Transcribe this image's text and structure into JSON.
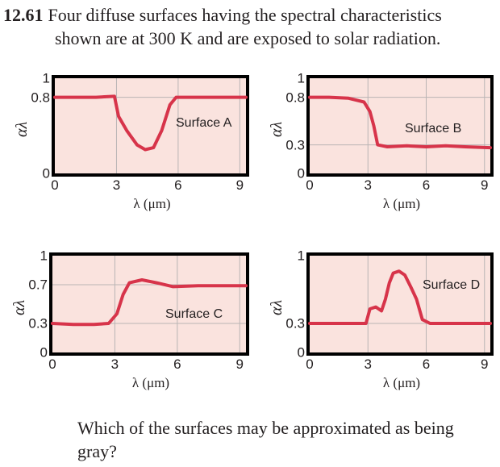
{
  "problem": {
    "number": "12.61",
    "text_line1": "Four diffuse surfaces having the spectral characteristics",
    "text_line2": "shown are at 300 K and are exposed to solar radiation."
  },
  "question": "Which of the surfaces may be approximated as being gray?",
  "colors": {
    "curve": "#d7344a",
    "plot_background": "#fae3de",
    "grid": "#b9b4b4",
    "frame": "#000000"
  },
  "chart_data": [
    {
      "type": "line",
      "label": "Surface A",
      "xlabel": "λ (μm)",
      "ylabel": "αλ",
      "xlim": [
        0,
        9.3
      ],
      "ylim": [
        0,
        1
      ],
      "xticks": [
        "0",
        "3",
        "6",
        "9"
      ],
      "yticks": [
        "0",
        "0.8",
        "1"
      ],
      "grid": true,
      "x": [
        0,
        1,
        2,
        2.9,
        3.1,
        3.5,
        4,
        4.4,
        4.8,
        5.2,
        5.6,
        5.9,
        7,
        8,
        9.3
      ],
      "y": [
        0.8,
        0.8,
        0.8,
        0.81,
        0.6,
        0.45,
        0.3,
        0.25,
        0.27,
        0.45,
        0.72,
        0.8,
        0.8,
        0.8,
        0.8
      ]
    },
    {
      "type": "line",
      "label": "Surface B",
      "xlabel": "λ (μm)",
      "ylabel": "αλ",
      "xlim": [
        0,
        9.3
      ],
      "ylim": [
        0,
        1
      ],
      "xticks": [
        "0",
        "3",
        "6",
        "9"
      ],
      "yticks": [
        "0",
        "0.3",
        "0.8",
        "1"
      ],
      "grid": true,
      "x": [
        0,
        1,
        2,
        2.8,
        3.1,
        3.3,
        3.5,
        4,
        5,
        6,
        7,
        8,
        9.3
      ],
      "y": [
        0.8,
        0.8,
        0.79,
        0.75,
        0.65,
        0.5,
        0.3,
        0.28,
        0.29,
        0.28,
        0.29,
        0.28,
        0.27
      ]
    },
    {
      "type": "line",
      "label": "Surface C",
      "xlabel": "λ (μm)",
      "ylabel": "αλ",
      "xlim": [
        0,
        9.3
      ],
      "ylim": [
        0,
        1
      ],
      "xticks": [
        "0",
        "3",
        "6",
        "9"
      ],
      "yticks": [
        "0",
        "0.3",
        "0.7",
        "1"
      ],
      "grid": true,
      "x": [
        0,
        1,
        2,
        2.7,
        3.1,
        3.4,
        3.7,
        4.3,
        5,
        5.8,
        7,
        8,
        9.3
      ],
      "y": [
        0.3,
        0.29,
        0.29,
        0.3,
        0.4,
        0.6,
        0.72,
        0.75,
        0.72,
        0.68,
        0.69,
        0.69,
        0.69
      ]
    },
    {
      "type": "line",
      "label": "Surface D",
      "xlabel": "λ (μm)",
      "ylabel": "αλ",
      "xlim": [
        0,
        9.3
      ],
      "ylim": [
        0,
        1
      ],
      "xticks": [
        "0",
        "3",
        "6",
        "9"
      ],
      "yticks": [
        "0",
        "0.3",
        "1"
      ],
      "grid": true,
      "x": [
        0,
        1,
        2,
        2.9,
        3.1,
        3.4,
        3.7,
        3.9,
        4.1,
        4.3,
        4.6,
        4.9,
        5.2,
        5.5,
        5.8,
        6.2,
        7,
        8,
        9.3
      ],
      "y": [
        0.3,
        0.3,
        0.3,
        0.3,
        0.45,
        0.47,
        0.43,
        0.55,
        0.72,
        0.82,
        0.84,
        0.8,
        0.68,
        0.55,
        0.34,
        0.3,
        0.3,
        0.3,
        0.3
      ]
    }
  ]
}
